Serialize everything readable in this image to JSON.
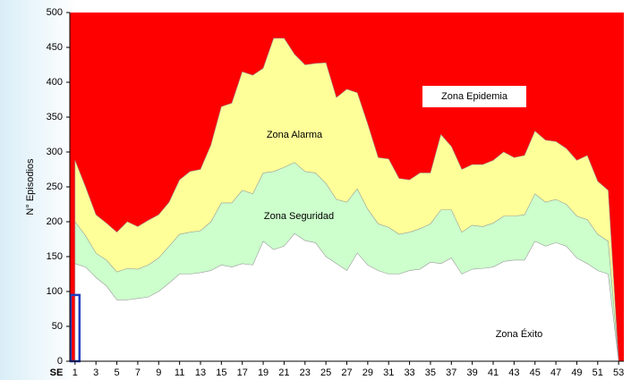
{
  "chart_data": {
    "type": "area",
    "y_label": "N° Episodios",
    "x_label": "SE",
    "x": [
      1,
      2,
      3,
      4,
      5,
      6,
      7,
      8,
      9,
      10,
      11,
      12,
      13,
      14,
      15,
      16,
      17,
      18,
      19,
      20,
      21,
      22,
      23,
      24,
      25,
      26,
      27,
      28,
      29,
      30,
      31,
      32,
      33,
      34,
      35,
      36,
      37,
      38,
      39,
      40,
      41,
      42,
      43,
      44,
      45,
      46,
      47,
      48,
      49,
      50,
      51,
      52,
      53
    ],
    "xlim": [
      0.5,
      53.5
    ],
    "xticks": [
      1,
      3,
      5,
      7,
      9,
      11,
      13,
      15,
      17,
      19,
      21,
      23,
      25,
      27,
      29,
      31,
      33,
      35,
      37,
      39,
      41,
      43,
      45,
      47,
      49,
      51,
      53
    ],
    "ylim": [
      0,
      500
    ],
    "yticks": [
      0,
      50,
      100,
      150,
      200,
      250,
      300,
      350,
      400,
      450,
      500
    ],
    "zones": [
      {
        "name": "Zona Alarma",
        "color": "#ffff99",
        "values": [
          288,
          250,
          210,
          198,
          185,
          200,
          193,
          202,
          210,
          228,
          260,
          272,
          275,
          310,
          365,
          370,
          415,
          410,
          420,
          463,
          463,
          440,
          425,
          427,
          428,
          378,
          390,
          385,
          340,
          292,
          290,
          262,
          260,
          270,
          270,
          325,
          308,
          275,
          282,
          282,
          288,
          300,
          292,
          295,
          330,
          317,
          315,
          305,
          288,
          295,
          258,
          245,
          0
        ]
      },
      {
        "name": "Zona Seguridad",
        "color": "#ccffcc",
        "values": [
          200,
          180,
          155,
          145,
          128,
          133,
          132,
          138,
          148,
          165,
          182,
          185,
          187,
          200,
          227,
          227,
          245,
          240,
          270,
          272,
          278,
          285,
          272,
          270,
          255,
          232,
          228,
          247,
          218,
          197,
          192,
          182,
          185,
          190,
          197,
          217,
          217,
          185,
          195,
          193,
          198,
          208,
          208,
          210,
          240,
          228,
          232,
          225,
          208,
          203,
          182,
          172,
          0
        ]
      },
      {
        "name": "Zona Éxito",
        "color": "#ffffff",
        "values": [
          140,
          135,
          120,
          108,
          88,
          88,
          90,
          92,
          100,
          112,
          125,
          125,
          127,
          130,
          138,
          135,
          140,
          138,
          172,
          160,
          165,
          183,
          173,
          170,
          150,
          140,
          130,
          155,
          138,
          130,
          125,
          125,
          130,
          132,
          142,
          140,
          148,
          125,
          132,
          133,
          135,
          143,
          145,
          145,
          172,
          165,
          170,
          165,
          148,
          140,
          130,
          125,
          0
        ]
      },
      {
        "name": "Zona Epidemia",
        "color": "#ff0000"
      }
    ],
    "observed": {
      "x": [
        1
      ],
      "values": [
        95
      ],
      "color": "#1f3fbf"
    }
  }
}
